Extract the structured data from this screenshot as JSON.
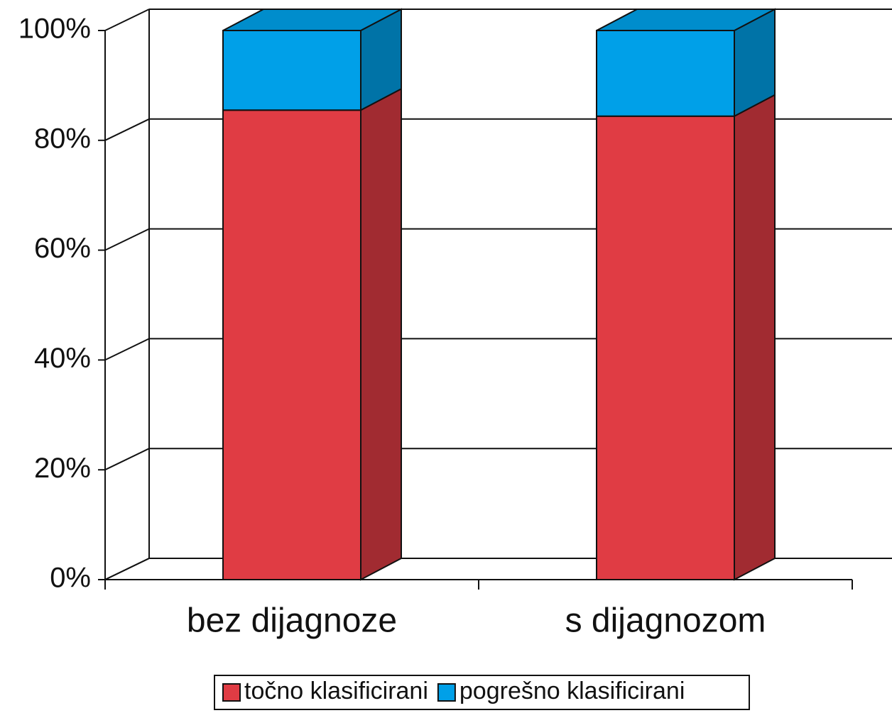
{
  "chart_data": {
    "type": "bar",
    "stacked": true,
    "three_d": true,
    "categories": [
      "bez dijagnoze",
      "s dijagnozom"
    ],
    "series": [
      {
        "name": "točno klasificirani",
        "color": "#e03c44",
        "values": [
          85.5,
          84.4
        ]
      },
      {
        "name": "pogrešno klasificirani",
        "color": "#00a0e8",
        "values": [
          14.5,
          15.6
        ]
      }
    ],
    "ylim": [
      0,
      100
    ],
    "yticks": [
      {
        "value": 0,
        "label": "0%"
      },
      {
        "value": 20,
        "label": "20%"
      },
      {
        "value": 40,
        "label": "40%"
      },
      {
        "value": 60,
        "label": "60%"
      },
      {
        "value": 80,
        "label": "80%"
      },
      {
        "value": 100,
        "label": "100%"
      }
    ],
    "grid": true,
    "legend": "bottom"
  }
}
